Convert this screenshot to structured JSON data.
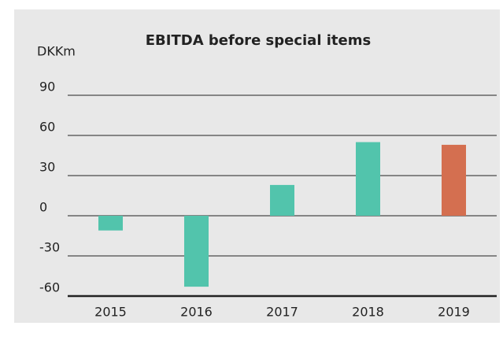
{
  "chart_data": {
    "type": "bar",
    "title": "EBITDA before special items",
    "y_label": "DKKm",
    "categories": [
      "2015",
      "2016",
      "2017",
      "2018",
      "2019"
    ],
    "values": [
      -11,
      -53,
      23,
      55,
      53
    ],
    "colors": [
      "#52c4ac",
      "#52c4ac",
      "#52c4ac",
      "#52c4ac",
      "#d46f50"
    ],
    "ylim": [
      -60,
      90
    ],
    "yticks": [
      -60,
      -30,
      0,
      30,
      60,
      90
    ],
    "grid": true
  }
}
